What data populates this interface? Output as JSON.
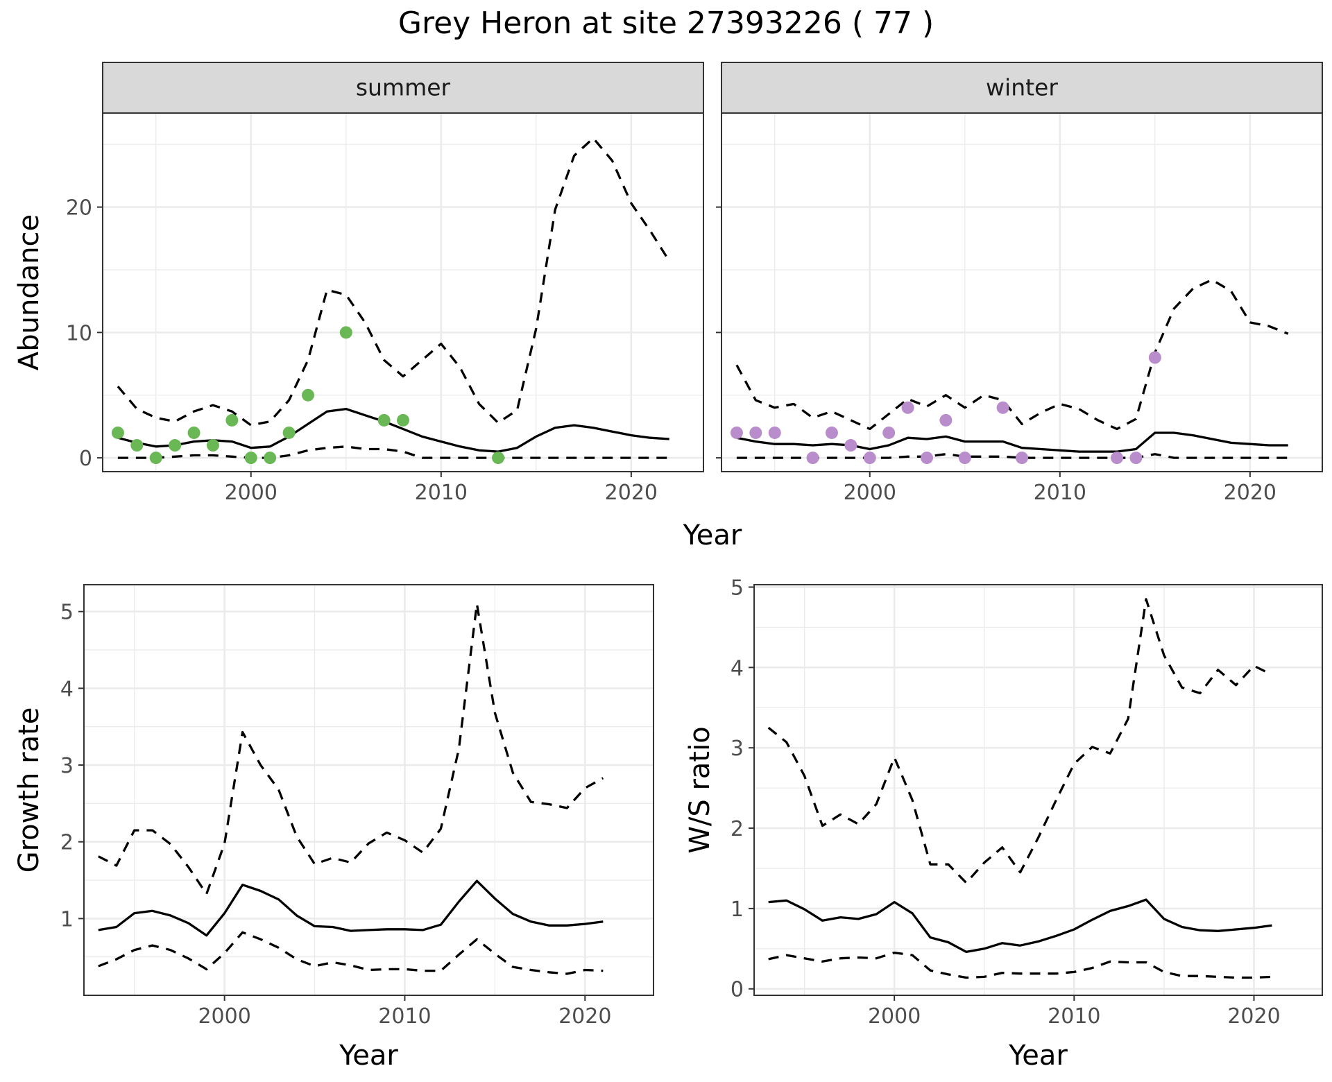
{
  "title": "Grey Heron at site 27393226 ( 77 )",
  "colors": {
    "summer_points": "#6ab755",
    "winter_points": "#b98ccc"
  },
  "chart_data": [
    {
      "id": "abundance",
      "type": "line",
      "facets": [
        "summer",
        "winter"
      ],
      "xlabel": "Year",
      "ylabel": "Abundance",
      "xlim": [
        1992.2,
        2023.8
      ],
      "ylim": [
        -1.1,
        27.5
      ],
      "xticks": [
        2000,
        2010,
        2020
      ],
      "yticks": [
        0,
        10,
        20
      ],
      "panels": [
        {
          "name": "summer",
          "point_color": "summer_points",
          "points": {
            "x": [
              1993,
              1994,
              1995,
              1996,
              1997,
              1998,
              1999,
              2000,
              2001,
              2002,
              2003,
              2005,
              2007,
              2008,
              2013
            ],
            "y": [
              2,
              1,
              0,
              1,
              2,
              1,
              3,
              0,
              0,
              2,
              5,
              10,
              3,
              3,
              0
            ]
          },
          "series": [
            {
              "role": "estimate",
              "x": [
                1993,
                1994,
                1995,
                1996,
                1997,
                1998,
                1999,
                2000,
                2001,
                2002,
                2003,
                2004,
                2005,
                2006,
                2007,
                2008,
                2009,
                2010,
                2011,
                2012,
                2013,
                2014,
                2015,
                2016,
                2017,
                2018,
                2019,
                2020,
                2021,
                2022
              ],
              "values": [
                1.6,
                1.2,
                0.9,
                1.0,
                1.3,
                1.4,
                1.3,
                0.8,
                0.9,
                1.7,
                2.7,
                3.7,
                3.9,
                3.4,
                2.9,
                2.3,
                1.7,
                1.3,
                0.9,
                0.6,
                0.5,
                0.8,
                1.7,
                2.4,
                2.6,
                2.4,
                2.1,
                1.8,
                1.6,
                1.5
              ]
            },
            {
              "role": "upper",
              "x": [
                1993,
                1994,
                1995,
                1996,
                1997,
                1998,
                1999,
                2000,
                2001,
                2002,
                2003,
                2004,
                2005,
                2006,
                2007,
                2008,
                2009,
                2010,
                2011,
                2012,
                2013,
                2014,
                2015,
                2016,
                2017,
                2018,
                2019,
                2020,
                2021,
                2022
              ],
              "values": [
                5.7,
                3.9,
                3.2,
                2.9,
                3.7,
                4.2,
                3.7,
                2.6,
                2.9,
                4.6,
                7.8,
                13.4,
                13.0,
                10.8,
                7.8,
                6.5,
                7.8,
                9.1,
                7.2,
                4.3,
                2.8,
                3.8,
                10.3,
                19.8,
                24.1,
                25.5,
                23.7,
                20.3,
                18.1,
                15.7
              ]
            },
            {
              "role": "lower",
              "x": [
                1993,
                1994,
                1995,
                1996,
                1997,
                1998,
                1999,
                2000,
                2001,
                2002,
                2003,
                2004,
                2005,
                2006,
                2007,
                2008,
                2009,
                2010,
                2011,
                2012,
                2013,
                2014,
                2015,
                2016,
                2017,
                2018,
                2019,
                2020,
                2021,
                2022
              ],
              "values": [
                0,
                0,
                0,
                0.1,
                0.2,
                0.2,
                0.1,
                0,
                0,
                0.2,
                0.6,
                0.8,
                0.9,
                0.7,
                0.7,
                0.5,
                0,
                0,
                0,
                0,
                0,
                0,
                0,
                0,
                0,
                0,
                0,
                0,
                0,
                0
              ]
            }
          ]
        },
        {
          "name": "winter",
          "point_color": "winter_points",
          "points": {
            "x": [
              1993,
              1994,
              1995,
              1997,
              1998,
              1999,
              2000,
              2001,
              2002,
              2003,
              2004,
              2005,
              2007,
              2008,
              2013,
              2014,
              2015
            ],
            "y": [
              2,
              2,
              2,
              0,
              2,
              1,
              0,
              2,
              4,
              0,
              3,
              0,
              4,
              0,
              0,
              0,
              8
            ]
          },
          "series": [
            {
              "role": "estimate",
              "x": [
                1993,
                1994,
                1995,
                1996,
                1997,
                1998,
                1999,
                2000,
                2001,
                2002,
                2003,
                2004,
                2005,
                2006,
                2007,
                2008,
                2009,
                2010,
                2011,
                2012,
                2013,
                2014,
                2015,
                2016,
                2017,
                2018,
                2019,
                2020,
                2021,
                2022
              ],
              "values": [
                1.6,
                1.3,
                1.1,
                1.1,
                1.0,
                1.1,
                1.0,
                0.7,
                1.0,
                1.6,
                1.5,
                1.7,
                1.3,
                1.3,
                1.3,
                0.8,
                0.7,
                0.6,
                0.5,
                0.5,
                0.5,
                0.7,
                2.0,
                2.0,
                1.8,
                1.5,
                1.2,
                1.1,
                1.0,
                1.0
              ]
            },
            {
              "role": "upper",
              "x": [
                1993,
                1994,
                1995,
                1996,
                1997,
                1998,
                1999,
                2000,
                2001,
                2002,
                2003,
                2004,
                2005,
                2006,
                2007,
                2008,
                2009,
                2010,
                2011,
                2012,
                2013,
                2014,
                2015,
                2016,
                2017,
                2018,
                2019,
                2020,
                2021,
                2022
              ],
              "values": [
                7.4,
                4.6,
                4.0,
                4.3,
                3.2,
                3.7,
                3.0,
                2.3,
                3.5,
                4.7,
                4.1,
                5.0,
                4.0,
                5.0,
                4.6,
                2.7,
                3.6,
                4.3,
                3.9,
                3.0,
                2.3,
                3.1,
                8.4,
                11.9,
                13.5,
                14.2,
                13.3,
                10.8,
                10.5,
                9.9
              ]
            },
            {
              "role": "lower",
              "x": [
                1993,
                1994,
                1995,
                1996,
                1997,
                1998,
                1999,
                2000,
                2001,
                2002,
                2003,
                2004,
                2005,
                2006,
                2007,
                2008,
                2009,
                2010,
                2011,
                2012,
                2013,
                2014,
                2015,
                2016,
                2017,
                2018,
                2019,
                2020,
                2021,
                2022
              ],
              "values": [
                0,
                0,
                0,
                0,
                0,
                0,
                0,
                0,
                0,
                0.1,
                0.1,
                0.3,
                0.1,
                0.1,
                0.1,
                0,
                0,
                0,
                0,
                0,
                0,
                0,
                0.3,
                0,
                0,
                0,
                0,
                0,
                0,
                0
              ]
            }
          ]
        }
      ]
    },
    {
      "id": "growth",
      "type": "line",
      "xlabel": "Year",
      "ylabel": "Growth rate",
      "xlim": [
        1992.2,
        2023.8
      ],
      "ylim": [
        0.0,
        5.35
      ],
      "xticks": [
        2000,
        2010,
        2020
      ],
      "yticks": [
        1,
        2,
        3,
        4,
        5
      ],
      "series": [
        {
          "role": "estimate",
          "x": [
            1993,
            1994,
            1995,
            1996,
            1997,
            1998,
            1999,
            2000,
            2001,
            2002,
            2003,
            2004,
            2005,
            2006,
            2007,
            2008,
            2009,
            2010,
            2011,
            2012,
            2013,
            2014,
            2015,
            2016,
            2017,
            2018,
            2019,
            2020,
            2021
          ],
          "values": [
            0.85,
            0.89,
            1.07,
            1.1,
            1.04,
            0.94,
            0.78,
            1.07,
            1.44,
            1.36,
            1.25,
            1.04,
            0.9,
            0.89,
            0.84,
            0.85,
            0.86,
            0.86,
            0.85,
            0.92,
            1.22,
            1.49,
            1.26,
            1.06,
            0.96,
            0.91,
            0.91,
            0.93,
            0.96
          ]
        },
        {
          "role": "upper",
          "x": [
            1993,
            1994,
            1995,
            1996,
            1997,
            1998,
            1999,
            2000,
            2001,
            2002,
            2003,
            2004,
            2005,
            2006,
            2007,
            2008,
            2009,
            2010,
            2011,
            2012,
            2013,
            2014,
            2015,
            2016,
            2017,
            2018,
            2019,
            2020,
            2021
          ],
          "values": [
            1.81,
            1.69,
            2.15,
            2.15,
            1.97,
            1.67,
            1.32,
            1.98,
            3.43,
            3.0,
            2.68,
            2.07,
            1.71,
            1.79,
            1.73,
            1.98,
            2.12,
            2.02,
            1.86,
            2.17,
            3.21,
            5.1,
            3.68,
            2.9,
            2.52,
            2.49,
            2.44,
            2.7,
            2.83
          ]
        },
        {
          "role": "lower",
          "x": [
            1993,
            1994,
            1995,
            1996,
            1997,
            1998,
            1999,
            2000,
            2001,
            2002,
            2003,
            2004,
            2005,
            2006,
            2007,
            2008,
            2009,
            2010,
            2011,
            2012,
            2013,
            2014,
            2015,
            2016,
            2017,
            2018,
            2019,
            2020,
            2021
          ],
          "values": [
            0.38,
            0.47,
            0.59,
            0.65,
            0.59,
            0.48,
            0.34,
            0.55,
            0.82,
            0.73,
            0.62,
            0.47,
            0.38,
            0.43,
            0.39,
            0.33,
            0.34,
            0.34,
            0.32,
            0.32,
            0.53,
            0.73,
            0.54,
            0.37,
            0.33,
            0.3,
            0.28,
            0.33,
            0.32
          ]
        }
      ]
    },
    {
      "id": "ratio",
      "type": "line",
      "xlabel": "Year",
      "ylabel": "W/S ratio",
      "xlim": [
        1992.2,
        2023.8
      ],
      "ylim": [
        -0.08,
        5.03
      ],
      "xticks": [
        2000,
        2010,
        2020
      ],
      "yticks": [
        0,
        1,
        2,
        3,
        4,
        5
      ],
      "series": [
        {
          "role": "estimate",
          "x": [
            1993,
            1994,
            1995,
            1996,
            1997,
            1998,
            1999,
            2000,
            2001,
            2002,
            2003,
            2004,
            2005,
            2006,
            2007,
            2008,
            2009,
            2010,
            2011,
            2012,
            2013,
            2014,
            2015,
            2016,
            2017,
            2018,
            2019,
            2020,
            2021
          ],
          "values": [
            1.08,
            1.1,
            0.99,
            0.85,
            0.89,
            0.87,
            0.93,
            1.08,
            0.94,
            0.64,
            0.58,
            0.46,
            0.5,
            0.57,
            0.54,
            0.59,
            0.66,
            0.74,
            0.86,
            0.97,
            1.03,
            1.11,
            0.87,
            0.77,
            0.73,
            0.72,
            0.74,
            0.76,
            0.79
          ]
        },
        {
          "role": "upper",
          "x": [
            1993,
            1994,
            1995,
            1996,
            1997,
            1998,
            1999,
            2000,
            2001,
            2002,
            2003,
            2004,
            2005,
            2006,
            2007,
            2008,
            2009,
            2010,
            2011,
            2012,
            2013,
            2014,
            2015,
            2016,
            2017,
            2018,
            2019,
            2020,
            2021
          ],
          "values": [
            3.25,
            3.07,
            2.65,
            2.03,
            2.17,
            2.05,
            2.3,
            2.88,
            2.35,
            1.55,
            1.55,
            1.32,
            1.57,
            1.76,
            1.45,
            1.88,
            2.35,
            2.8,
            3.01,
            2.93,
            3.36,
            4.85,
            4.15,
            3.75,
            3.68,
            3.97,
            3.78,
            4.02,
            3.91
          ]
        },
        {
          "role": "lower",
          "x": [
            1993,
            1994,
            1995,
            1996,
            1997,
            1998,
            1999,
            2000,
            2001,
            2002,
            2003,
            2004,
            2005,
            2006,
            2007,
            2008,
            2009,
            2010,
            2011,
            2012,
            2013,
            2014,
            2015,
            2016,
            2017,
            2018,
            2019,
            2020,
            2021
          ],
          "values": [
            0.37,
            0.42,
            0.38,
            0.34,
            0.38,
            0.39,
            0.38,
            0.45,
            0.42,
            0.23,
            0.18,
            0.14,
            0.15,
            0.2,
            0.19,
            0.19,
            0.19,
            0.21,
            0.26,
            0.34,
            0.33,
            0.33,
            0.21,
            0.16,
            0.16,
            0.15,
            0.14,
            0.14,
            0.15
          ]
        }
      ]
    }
  ]
}
